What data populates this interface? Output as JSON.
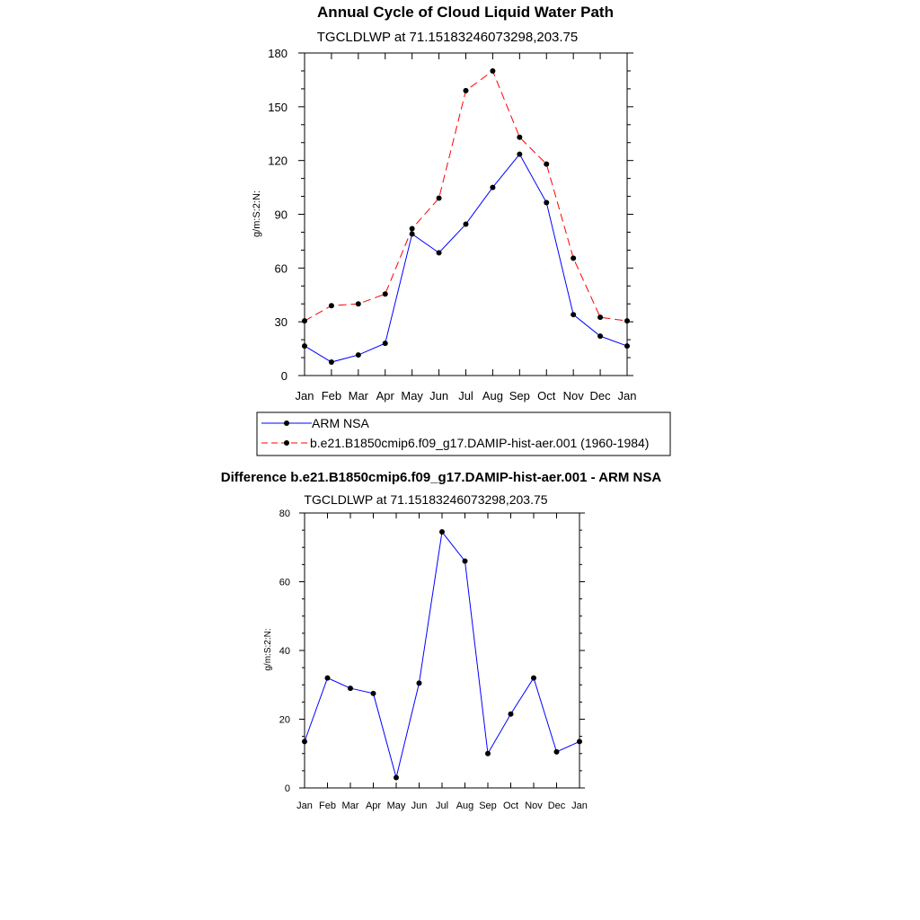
{
  "chart_data": [
    {
      "type": "line",
      "title": "Annual Cycle of Cloud Liquid Water Path",
      "subtitle": "TGCLDLWP at 71.15183246073298,203.75",
      "ylabel": "g/m:S:2:N:",
      "xlabel": "",
      "categories": [
        "Jan",
        "Feb",
        "Mar",
        "Apr",
        "May",
        "Jun",
        "Jul",
        "Aug",
        "Sep",
        "Oct",
        "Nov",
        "Dec",
        "Jan"
      ],
      "ylim": [
        0,
        180
      ],
      "yticks": [
        "0",
        "30",
        "60",
        "90",
        "120",
        "150",
        "180"
      ],
      "series": [
        {
          "name": "ARM NSA",
          "color": "#0000ff",
          "dash": "solid",
          "values": [
            16.5,
            7.5,
            11.5,
            18,
            79,
            68.5,
            84.5,
            105,
            123.5,
            96.5,
            34,
            22,
            16.5
          ]
        },
        {
          "name": "b.e21.B1850cmip6.f09_g17.DAMIP-hist-aer.001 (1960-1984)",
          "color": "#ff0000",
          "dash": "dashed",
          "values": [
            30.5,
            39,
            40,
            45.5,
            82,
            99,
            159,
            170,
            133,
            118,
            65.5,
            32.5,
            30.5
          ]
        }
      ]
    },
    {
      "type": "line",
      "title": "Difference b.e21.B1850cmip6.f09_g17.DAMIP-hist-aer.001 - ARM NSA",
      "subtitle": "TGCLDLWP at 71.15183246073298,203.75",
      "ylabel": "g/m:S:2:N:",
      "xlabel": "",
      "categories": [
        "Jan",
        "Feb",
        "Mar",
        "Apr",
        "May",
        "Jun",
        "Jul",
        "Aug",
        "Sep",
        "Oct",
        "Nov",
        "Dec",
        "Jan"
      ],
      "ylim": [
        0,
        80
      ],
      "yticks": [
        "0",
        "20",
        "40",
        "60",
        "80"
      ],
      "series": [
        {
          "name": "Difference",
          "color": "#0000ff",
          "dash": "solid",
          "values": [
            13.5,
            32,
            29,
            27.5,
            3,
            30.5,
            74.5,
            66,
            10,
            21.5,
            32,
            10.5,
            13.5
          ]
        }
      ]
    }
  ]
}
